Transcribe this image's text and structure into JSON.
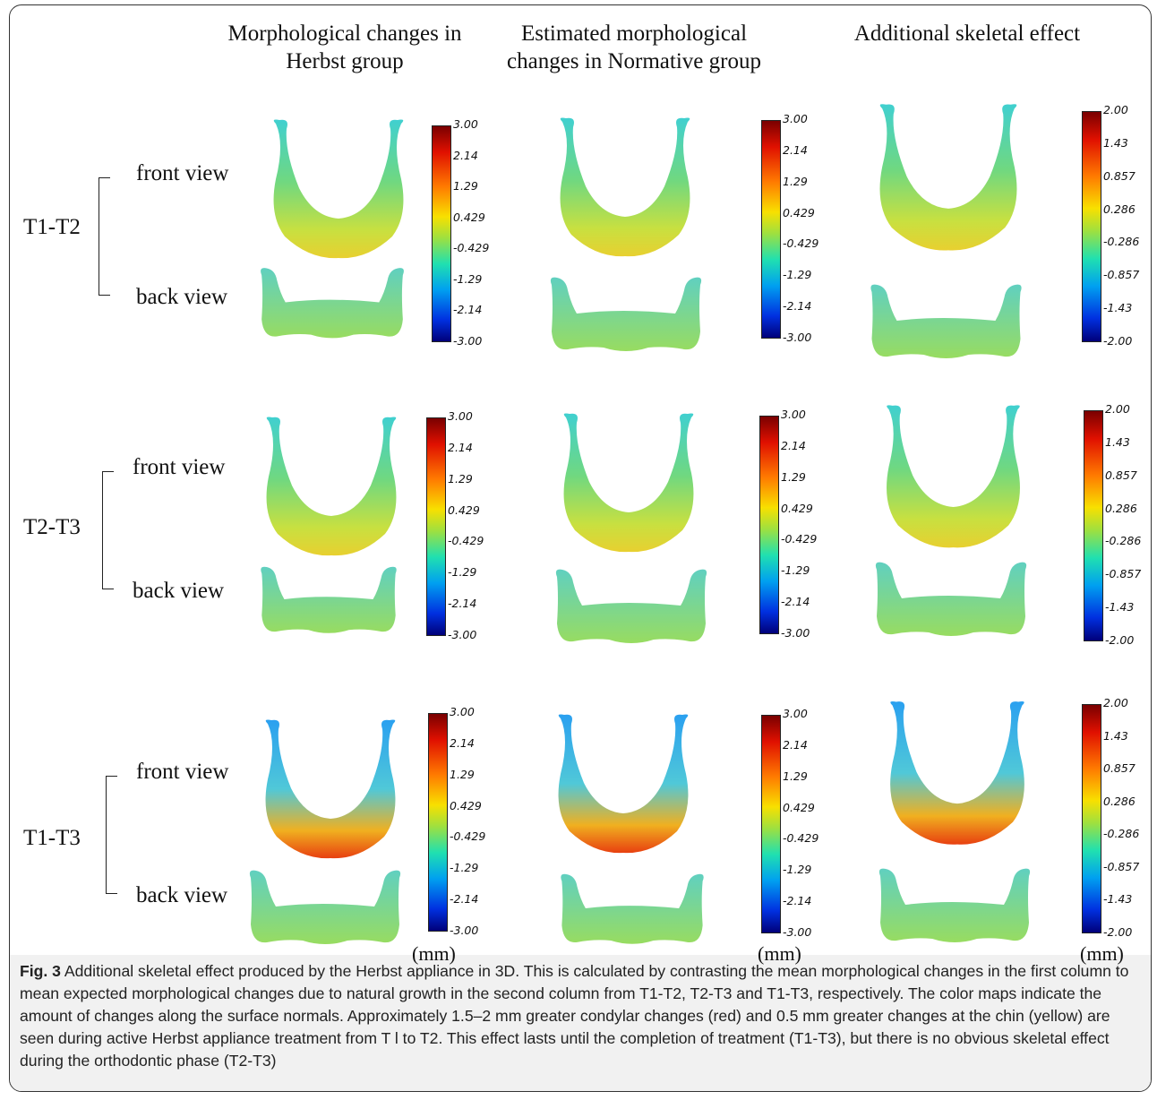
{
  "columns": [
    {
      "title": "Morphological changes in Herbst group"
    },
    {
      "title": "Estimated morphological changes in Normative group"
    },
    {
      "title": "Additional skeletal effect"
    }
  ],
  "rows": [
    {
      "label": "T1-T2",
      "front": "front view",
      "back": "back view"
    },
    {
      "label": "T2-T3",
      "front": "front view",
      "back": "back view"
    },
    {
      "label": "T1-T3",
      "front": "front view",
      "back": "back view"
    }
  ],
  "scale_ticks_3": [
    "3.00",
    "2.14",
    "1.29",
    "0.429",
    "-0.429",
    "-1.29",
    "-2.14",
    "-3.00"
  ],
  "scale_ticks_2": [
    "2.00",
    "1.43",
    "0.857",
    "0.286",
    "-0.286",
    "-0.857",
    "-1.43",
    "-2.00"
  ],
  "unit": "(mm)",
  "caption": {
    "label": "Fig. 3",
    "text": "Additional skeletal effect produced by the Herbst appliance in 3D. This is calculated by contrasting the mean morphological changes in the first column to mean expected morphological changes due to natural growth in the second column from T1-T2, T2-T3 and T1-T3, respectively. The color maps indicate the amount of changes along the surface normals. Approximately 1.5–2 mm greater condylar changes (red) and 0.5 mm greater changes at the chin (yellow) are seen during active Herbst appliance treatment from T l to T2. This effect lasts until the completion of treatment (T1-T3), but there is no obvious skeletal effect during the orthodontic phase (T2-T3)"
  },
  "colors": {
    "front_fill": "#8fd85a",
    "back_fill": "#7fd8a0",
    "hot": "#e8301a",
    "cool": "#2aa0f0"
  }
}
